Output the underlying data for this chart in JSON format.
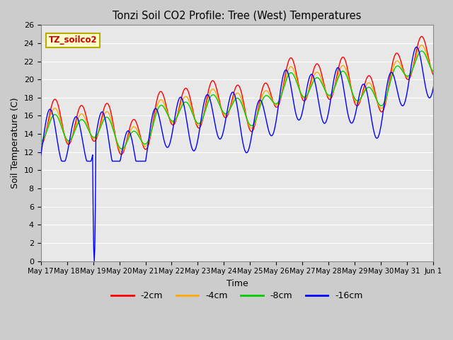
{
  "title": "Tonzi Soil CO2 Profile: Tree (West) Temperatures",
  "xlabel": "Time",
  "ylabel": "Soil Temperature (C)",
  "ylim": [
    0,
    26
  ],
  "yticks": [
    0,
    2,
    4,
    6,
    8,
    10,
    12,
    14,
    16,
    18,
    20,
    22,
    24,
    26
  ],
  "legend_label": "TZ_soilco2",
  "legend_box_color": "#ffffcc",
  "legend_box_edge": "#bbaa00",
  "series_labels": [
    "-2cm",
    "-4cm",
    "-8cm",
    "-16cm"
  ],
  "series_colors": [
    "#ff0000",
    "#ffaa00",
    "#00cc00",
    "#0000ff"
  ],
  "xtick_labels": [
    "May 17",
    "May 18",
    "May 19",
    "May 20",
    "May 21",
    "May 22",
    "May 23",
    "May 24",
    "May 25",
    "May 26",
    "May 27",
    "May 28",
    "May 29",
    "May 30",
    "May 31",
    "Jun 1"
  ],
  "figsize": [
    6.4,
    4.8
  ],
  "dpi": 100
}
